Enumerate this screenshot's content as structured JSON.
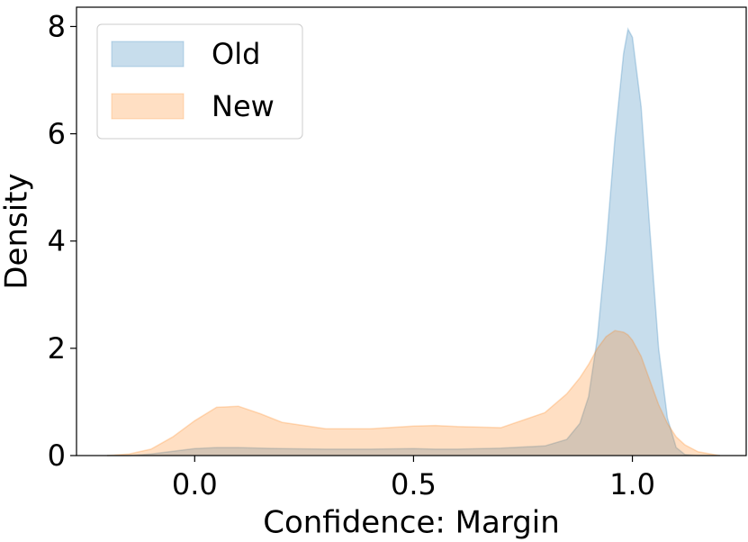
{
  "chart_data": {
    "type": "area",
    "xlabel": "Confidence: Margin",
    "ylabel": "Density",
    "x": [
      -0.2,
      -0.15,
      -0.1,
      -0.05,
      0,
      0.05,
      0.1,
      0.15,
      0.2,
      0.3,
      0.4,
      0.5,
      0.55,
      0.6,
      0.7,
      0.8,
      0.85,
      0.88,
      0.9,
      0.92,
      0.94,
      0.96,
      0.98,
      0.99,
      1.0,
      1.02,
      1.04,
      1.06,
      1.08,
      1.1,
      1.12,
      1.15,
      1.2
    ],
    "series": [
      {
        "name": "Old",
        "color": "#1f77b4",
        "values": [
          0,
          0,
          0.03,
          0.08,
          0.13,
          0.15,
          0.15,
          0.14,
          0.13,
          0.12,
          0.12,
          0.13,
          0.12,
          0.12,
          0.14,
          0.18,
          0.3,
          0.6,
          1.1,
          2.2,
          3.9,
          5.9,
          7.5,
          7.95,
          7.8,
          6.5,
          4.2,
          2.0,
          0.7,
          0.15,
          0.02,
          0,
          0
        ]
      },
      {
        "name": "New",
        "color": "#ff7f0e",
        "values": [
          0,
          0.03,
          0.12,
          0.35,
          0.65,
          0.9,
          0.92,
          0.78,
          0.62,
          0.5,
          0.5,
          0.55,
          0.56,
          0.54,
          0.52,
          0.8,
          1.15,
          1.45,
          1.7,
          2.0,
          2.22,
          2.33,
          2.3,
          2.25,
          2.15,
          1.85,
          1.4,
          0.95,
          0.6,
          0.35,
          0.2,
          0.07,
          0
        ]
      }
    ],
    "xlim": [
      -0.27,
      1.26
    ],
    "ylim": [
      0,
      8.36
    ],
    "xticks": [
      {
        "value": 0,
        "label": "0.0"
      },
      0.5,
      {
        "value": 1,
        "label": "1.0"
      }
    ],
    "yticks": [
      0,
      2,
      4,
      6,
      8
    ],
    "legend": "upper left"
  }
}
